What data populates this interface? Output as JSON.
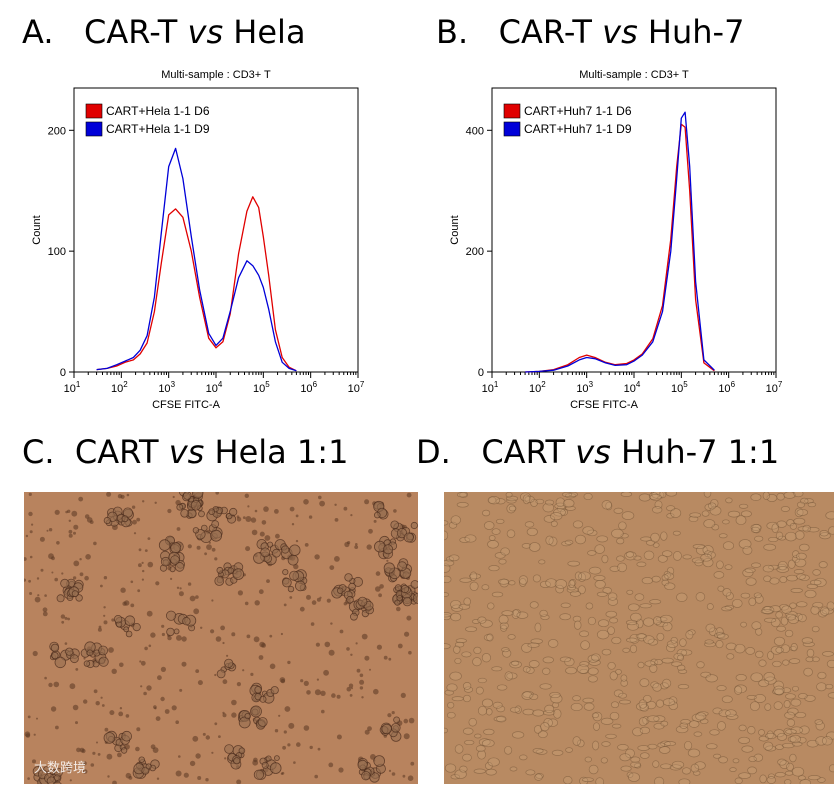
{
  "panel_a": {
    "letter": "A.",
    "title_left": "CAR-T",
    "title_vs": "vs",
    "title_right": "Hela"
  },
  "panel_b": {
    "letter": "B.",
    "title_left": "CAR-T",
    "title_vs": "vs",
    "title_right": "Huh-7"
  },
  "panel_c": {
    "letter": "C.",
    "title_left": "CART",
    "title_vs": "vs",
    "title_right": "Hela 1:1",
    "tint": "#b8835e"
  },
  "panel_d": {
    "letter": "D.",
    "title_left": "CART",
    "title_vs": "vs",
    "title_right": "Huh-7 1:1",
    "tint": "#b88a62"
  },
  "watermark": "大数跨境",
  "chart_data": [
    {
      "type": "line",
      "title": "Multi-sample : CD3+ T",
      "xlabel": "CFSE FITC-A",
      "ylabel": "Count",
      "x_scale": "log",
      "xlim": [
        10,
        10000000
      ],
      "ylim": [
        0,
        235
      ],
      "x_ticks": [
        10,
        100,
        1000,
        10000,
        100000,
        1000000,
        10000000
      ],
      "x_tick_labels": [
        "10^1",
        "10^2",
        "10^3",
        "10^4",
        "10^5",
        "10^6",
        "10^7"
      ],
      "y_ticks": [
        0,
        100,
        200
      ],
      "legend_position": "top-left",
      "series": [
        {
          "name": "CART+Hela 1-1 D6",
          "color": "#e00000",
          "x": [
            30,
            50,
            80,
            120,
            180,
            250,
            350,
            500,
            700,
            1000,
            1400,
            2000,
            3000,
            4500,
            7000,
            10000,
            14000,
            20000,
            30000,
            45000,
            60000,
            80000,
            100000,
            130000,
            180000,
            250000,
            350000,
            500000
          ],
          "y": [
            2,
            3,
            5,
            8,
            10,
            15,
            24,
            50,
            90,
            130,
            135,
            128,
            100,
            62,
            28,
            20,
            25,
            48,
            98,
            133,
            145,
            136,
            112,
            80,
            35,
            12,
            4,
            1
          ]
        },
        {
          "name": "CART+Hela 1-1 D9",
          "color": "#0000d8",
          "x": [
            30,
            50,
            80,
            120,
            180,
            250,
            350,
            500,
            700,
            1000,
            1400,
            2000,
            3000,
            4500,
            7000,
            10000,
            14000,
            20000,
            30000,
            45000,
            60000,
            80000,
            100000,
            130000,
            180000,
            250000,
            350000,
            500000
          ],
          "y": [
            2,
            3,
            6,
            9,
            12,
            18,
            30,
            62,
            115,
            170,
            185,
            160,
            112,
            68,
            32,
            22,
            28,
            50,
            78,
            92,
            88,
            80,
            70,
            52,
            25,
            8,
            3,
            1
          ]
        }
      ]
    },
    {
      "type": "line",
      "title": "Multi-sample : CD3+ T",
      "xlabel": "CFSE FITC-A",
      "ylabel": "Count",
      "x_scale": "log",
      "xlim": [
        10,
        10000000
      ],
      "ylim": [
        0,
        470
      ],
      "x_ticks": [
        10,
        100,
        1000,
        10000,
        100000,
        1000000,
        10000000
      ],
      "x_tick_labels": [
        "10^1",
        "10^2",
        "10^3",
        "10^4",
        "10^5",
        "10^6",
        "10^7"
      ],
      "y_ticks": [
        0,
        200,
        400
      ],
      "legend_position": "top-left",
      "series": [
        {
          "name": "CART+Huh7 1-1 D6",
          "color": "#e00000",
          "x": [
            50,
            100,
            200,
            400,
            700,
            1000,
            1500,
            2500,
            4000,
            7000,
            10000,
            15000,
            25000,
            40000,
            60000,
            80000,
            100000,
            120000,
            150000,
            200000,
            300000,
            500000
          ],
          "y": [
            0,
            1,
            4,
            12,
            24,
            28,
            24,
            16,
            12,
            14,
            20,
            30,
            55,
            110,
            220,
            340,
            410,
            405,
            300,
            120,
            15,
            2
          ]
        },
        {
          "name": "CART+Huh7 1-1 D9",
          "color": "#0000d8",
          "x": [
            50,
            100,
            200,
            400,
            700,
            1000,
            1500,
            2500,
            4000,
            7000,
            10000,
            15000,
            25000,
            40000,
            60000,
            80000,
            100000,
            120000,
            150000,
            200000,
            300000,
            500000
          ],
          "y": [
            0,
            1,
            3,
            10,
            20,
            24,
            22,
            15,
            11,
            12,
            18,
            28,
            50,
            100,
            200,
            320,
            420,
            430,
            340,
            150,
            20,
            3
          ]
        }
      ]
    }
  ]
}
